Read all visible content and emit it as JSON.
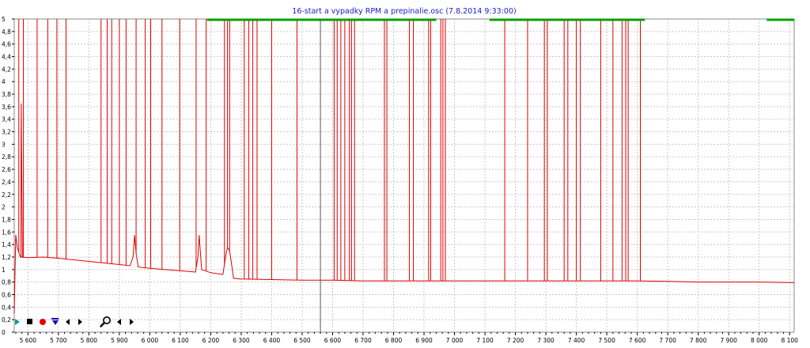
{
  "chart_data": {
    "type": "line",
    "title": "16-start a vypadky RPM a prepinalie.osc  (7.8.2014 9:33:00)",
    "xlim": [
      5555,
      8115
    ],
    "ylim": [
      0,
      5
    ],
    "x_ticks": [
      5600,
      5700,
      5800,
      5900,
      6000,
      6100,
      6200,
      6300,
      6400,
      6500,
      6600,
      6700,
      6800,
      6900,
      7000,
      7100,
      7200,
      7300,
      7400,
      7500,
      7600,
      7700,
      7800,
      7900,
      8000,
      8100
    ],
    "x_tick_labels": [
      "5 600",
      "5 700",
      "5 800",
      "5 900",
      "6 000",
      "6 100",
      "6 200",
      "6 300",
      "6 400",
      "6 500",
      "6 600",
      "6 700",
      "6 800",
      "6 900",
      "7 000",
      "7 100",
      "7 200",
      "7 300",
      "7 400",
      "7 500",
      "7 600",
      "7 700",
      "7 800",
      "7 900",
      "8 000",
      "8 100"
    ],
    "y_ticks": [
      0,
      0.2,
      0.4,
      0.6,
      0.8,
      1,
      1.2,
      1.4,
      1.6,
      1.8,
      2,
      2.2,
      2.4,
      2.6,
      2.8,
      3,
      3.2,
      3.4,
      3.6,
      3.8,
      4,
      4.2,
      4.4,
      4.6,
      4.8,
      5
    ],
    "y_tick_labels": [
      "0",
      "0,2",
      "0,4",
      "0,6",
      "0,8",
      "1",
      "1,2",
      "1,4",
      "1,6",
      "1,8",
      "2",
      "2,2",
      "2,4",
      "2,6",
      "2,8",
      "3",
      "3,2",
      "3,4",
      "3,6",
      "3,8",
      "4",
      "4,2",
      "4,4",
      "4,6",
      "4,8",
      "5"
    ],
    "grid": true,
    "cursor_x": 6560,
    "series": [
      {
        "color": "#e00000",
        "baseline": [
          [
            5555,
            0.3
          ],
          [
            5560,
            1.55
          ],
          [
            5565,
            1.35
          ],
          [
            5575,
            1.2
          ],
          [
            5600,
            1.19
          ],
          [
            5650,
            1.2
          ],
          [
            5700,
            1.18
          ],
          [
            5800,
            1.13
          ],
          [
            5900,
            1.08
          ],
          [
            5935,
            1.06
          ],
          [
            5945,
            1.2
          ],
          [
            5950,
            1.55
          ],
          [
            5955,
            1.25
          ],
          [
            5962,
            1.04
          ],
          [
            6000,
            1.02
          ],
          [
            6100,
            0.98
          ],
          [
            6150,
            0.96
          ],
          [
            6158,
            1.2
          ],
          [
            6162,
            1.55
          ],
          [
            6170,
            1.0
          ],
          [
            6200,
            0.95
          ],
          [
            6240,
            0.92
          ],
          [
            6250,
            1.25
          ],
          [
            6255,
            1.35
          ],
          [
            6262,
            1.3
          ],
          [
            6275,
            0.86
          ],
          [
            6300,
            0.85
          ],
          [
            6400,
            0.84
          ],
          [
            6500,
            0.83
          ],
          [
            6600,
            0.83
          ],
          [
            6700,
            0.82
          ],
          [
            6800,
            0.82
          ],
          [
            6900,
            0.82
          ],
          [
            7000,
            0.82
          ],
          [
            7100,
            0.82
          ],
          [
            7200,
            0.82
          ],
          [
            7300,
            0.82
          ],
          [
            7400,
            0.82
          ],
          [
            7500,
            0.82
          ],
          [
            7600,
            0.82
          ],
          [
            7700,
            0.81
          ],
          [
            7800,
            0.8
          ],
          [
            7900,
            0.8
          ],
          [
            8000,
            0.8
          ],
          [
            8115,
            0.79
          ]
        ],
        "pulses": [
          5570,
          5585,
          5630,
          5665,
          5695,
          5725,
          5840,
          5860,
          5875,
          5900,
          5922,
          5955,
          5985,
          6003,
          6040,
          6098,
          6152,
          6185,
          6245,
          6255,
          6262,
          6310,
          6325,
          6338,
          6352,
          6400,
          6483,
          6605,
          6615,
          6627,
          6640,
          6655,
          6662,
          6672,
          6770,
          6778,
          6852,
          6865,
          6915,
          6922,
          6955,
          6962,
          6970,
          7165,
          7240,
          7295,
          7305,
          7360,
          7372,
          7400,
          7413,
          7480,
          7520,
          7550,
          7562,
          7570,
          7610
        ]
      },
      {
        "color": "#00a000",
        "level": 5,
        "segments": [
          [
            6188,
            6940
          ],
          [
            7115,
            7625
          ],
          [
            8025,
            8115
          ]
        ]
      }
    ]
  },
  "toolbar": {
    "colors": {
      "play": "#009b9b",
      "stop": "#000000",
      "record": "#e00000",
      "down": "#1010c0",
      "nav": "#000000",
      "zoom": "#000000"
    }
  }
}
